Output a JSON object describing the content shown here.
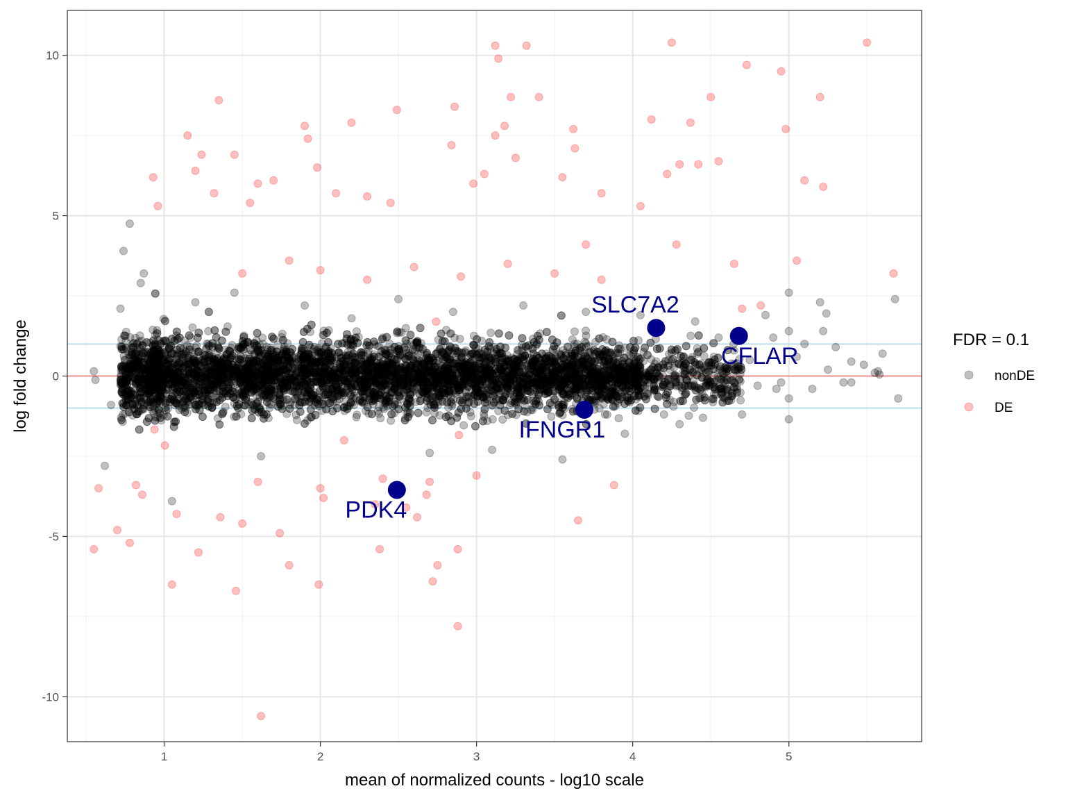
{
  "chart_data": {
    "type": "scatter",
    "title": "",
    "xlabel": "mean of normalized counts - log10 scale",
    "ylabel": "log fold change",
    "xlim": [
      0.38,
      5.85
    ],
    "ylim": [
      -11.4,
      11.4
    ],
    "x_ticks": [
      1,
      2,
      3,
      4,
      5
    ],
    "y_ticks": [
      -10,
      -5,
      0,
      5,
      10
    ],
    "x_tick_labels": [
      "1",
      "2",
      "3",
      "4",
      "5"
    ],
    "y_tick_labels": [
      "-10",
      "-5",
      "0",
      "5",
      "10"
    ],
    "grid": true,
    "reference_lines": [
      {
        "y": 0,
        "color": "#f08080"
      },
      {
        "y": 1,
        "color": "#add8e6"
      },
      {
        "y": -1,
        "color": "#add8e6"
      }
    ],
    "legend": {
      "title": "FDR = 0.1",
      "position": "right",
      "entries": [
        {
          "label": "nonDE",
          "color": "#000000"
        },
        {
          "label": "DE",
          "color": "#ff0000"
        }
      ]
    },
    "series": [
      {
        "name": "nonDE",
        "color": "#000000",
        "opacity": 0.25,
        "points": [
          [
            0.55,
            0.15
          ],
          [
            0.56,
            -0.12
          ],
          [
            0.62,
            -2.8
          ],
          [
            0.66,
            -0.9
          ],
          [
            0.72,
            2.1
          ],
          [
            0.74,
            3.9
          ],
          [
            0.78,
            4.75
          ],
          [
            0.85,
            2.9
          ],
          [
            0.87,
            3.2
          ],
          [
            1.05,
            -3.9
          ],
          [
            1.2,
            2.3
          ],
          [
            1.45,
            2.6
          ],
          [
            1.62,
            -2.5
          ],
          [
            1.9,
            2.2
          ],
          [
            2.2,
            1.8
          ],
          [
            2.5,
            2.4
          ],
          [
            2.7,
            -2.4
          ],
          [
            2.85,
            2.0
          ],
          [
            3.1,
            -2.3
          ],
          [
            3.3,
            2.2
          ],
          [
            3.55,
            -2.6
          ],
          [
            3.7,
            2.0
          ],
          [
            3.95,
            -1.8
          ],
          [
            4.05,
            1.9
          ],
          [
            4.2,
            -1.2
          ],
          [
            4.3,
            -1.5
          ],
          [
            4.4,
            1.7
          ],
          [
            4.45,
            -1.3
          ],
          [
            4.55,
            1.2
          ],
          [
            4.6,
            -0.4
          ],
          [
            4.65,
            0.8
          ],
          [
            4.7,
            -1.2
          ],
          [
            4.75,
            0.5
          ],
          [
            4.8,
            -0.3
          ],
          [
            4.85,
            1.9
          ],
          [
            4.9,
            1.2
          ],
          [
            4.95,
            -0.2
          ],
          [
            5.0,
            2.6
          ],
          [
            5.0,
            1.4
          ],
          [
            5.0,
            -0.7
          ],
          [
            5.0,
            -1.35
          ],
          [
            5.05,
            0.6
          ],
          [
            5.1,
            1.0
          ],
          [
            5.15,
            -0.4
          ],
          [
            5.2,
            2.3
          ],
          [
            5.22,
            1.4
          ],
          [
            5.25,
            0.2
          ],
          [
            5.3,
            0.9
          ],
          [
            5.35,
            -0.2
          ],
          [
            5.4,
            0.45
          ],
          [
            5.4,
            -0.2
          ],
          [
            5.48,
            0.35
          ],
          [
            5.55,
            0.1
          ],
          [
            5.57,
            0.15
          ],
          [
            5.6,
            0.7
          ],
          [
            5.68,
            2.4
          ],
          [
            5.7,
            -0.7
          ],
          [
            5.24,
            1.95
          ],
          [
            5.58,
            0.05
          ],
          [
            4.92,
            -0.4
          ]
        ]
      },
      {
        "name": "DE",
        "color": "#ff0000",
        "opacity": 0.25,
        "points": [
          [
            0.55,
            -5.4
          ],
          [
            0.58,
            -3.5
          ],
          [
            0.7,
            -4.8
          ],
          [
            0.78,
            -5.2
          ],
          [
            0.82,
            -3.4
          ],
          [
            0.86,
            -3.7
          ],
          [
            0.93,
            6.2
          ],
          [
            0.96,
            5.3
          ],
          [
            1.05,
            -6.5
          ],
          [
            1.08,
            -4.3
          ],
          [
            1.15,
            7.5
          ],
          [
            1.2,
            6.4
          ],
          [
            1.22,
            -5.5
          ],
          [
            1.24,
            6.9
          ],
          [
            1.32,
            5.7
          ],
          [
            1.35,
            8.6
          ],
          [
            1.36,
            -4.4
          ],
          [
            1.45,
            6.9
          ],
          [
            1.46,
            -6.7
          ],
          [
            1.5,
            -4.6
          ],
          [
            1.55,
            5.4
          ],
          [
            1.6,
            6.0
          ],
          [
            1.62,
            -10.6
          ],
          [
            1.7,
            6.1
          ],
          [
            1.74,
            -4.9
          ],
          [
            1.8,
            -5.9
          ],
          [
            1.9,
            7.8
          ],
          [
            1.92,
            7.4
          ],
          [
            1.98,
            6.5
          ],
          [
            1.99,
            -6.5
          ],
          [
            2.02,
            -3.8
          ],
          [
            2.1,
            5.7
          ],
          [
            2.2,
            7.9
          ],
          [
            2.3,
            5.6
          ],
          [
            2.35,
            -4.0
          ],
          [
            2.38,
            -5.4
          ],
          [
            2.45,
            5.4
          ],
          [
            2.49,
            8.3
          ],
          [
            2.55,
            -4.1
          ],
          [
            2.62,
            -4.4
          ],
          [
            2.68,
            -3.7
          ],
          [
            2.72,
            -6.4
          ],
          [
            2.75,
            -5.9
          ],
          [
            2.84,
            7.2
          ],
          [
            2.86,
            8.4
          ],
          [
            2.88,
            -5.4
          ],
          [
            2.88,
            -7.8
          ],
          [
            2.98,
            6.0
          ],
          [
            3.05,
            6.3
          ],
          [
            3.12,
            7.5
          ],
          [
            3.12,
            10.3
          ],
          [
            3.14,
            9.9
          ],
          [
            3.18,
            7.8
          ],
          [
            3.22,
            8.7
          ],
          [
            3.25,
            6.8
          ],
          [
            3.32,
            10.3
          ],
          [
            3.4,
            8.7
          ],
          [
            3.55,
            6.2
          ],
          [
            3.62,
            7.7
          ],
          [
            3.63,
            7.1
          ],
          [
            3.65,
            -4.5
          ],
          [
            3.7,
            4.1
          ],
          [
            3.8,
            5.7
          ],
          [
            3.88,
            -3.4
          ],
          [
            4.05,
            5.3
          ],
          [
            4.12,
            8.0
          ],
          [
            4.22,
            6.3
          ],
          [
            4.25,
            10.4
          ],
          [
            4.28,
            4.1
          ],
          [
            4.3,
            6.6
          ],
          [
            4.37,
            7.9
          ],
          [
            4.42,
            6.6
          ],
          [
            4.5,
            8.7
          ],
          [
            4.55,
            6.7
          ],
          [
            4.65,
            3.5
          ],
          [
            4.7,
            2.1
          ],
          [
            4.73,
            9.7
          ],
          [
            4.82,
            2.2
          ],
          [
            4.95,
            9.5
          ],
          [
            4.98,
            7.7
          ],
          [
            5.05,
            3.6
          ],
          [
            5.1,
            6.1
          ],
          [
            5.2,
            8.7
          ],
          [
            5.22,
            5.9
          ],
          [
            5.5,
            10.4
          ],
          [
            5.67,
            3.2
          ],
          [
            1.5,
            3.2
          ],
          [
            1.8,
            3.6
          ],
          [
            2.0,
            3.3
          ],
          [
            2.3,
            3.0
          ],
          [
            2.6,
            3.4
          ],
          [
            2.9,
            3.1
          ],
          [
            3.2,
            3.5
          ],
          [
            3.5,
            3.2
          ],
          [
            3.8,
            3.0
          ],
          [
            1.6,
            -3.3
          ],
          [
            2.0,
            -3.5
          ],
          [
            2.4,
            -3.2
          ],
          [
            2.7,
            -3.3
          ],
          [
            3.0,
            -3.1
          ]
        ]
      }
    ],
    "highlighted_genes": [
      {
        "label": "SLC7A2",
        "x": 4.15,
        "y": 1.5,
        "color": "#00008b"
      },
      {
        "label": "CFLAR",
        "x": 4.68,
        "y": 1.25,
        "color": "#00008b"
      },
      {
        "label": "IFNGR1",
        "x": 3.69,
        "y": -1.05,
        "color": "#00008b"
      },
      {
        "label": "PDK4",
        "x": 2.49,
        "y": -3.55,
        "color": "#00008b"
      }
    ]
  }
}
